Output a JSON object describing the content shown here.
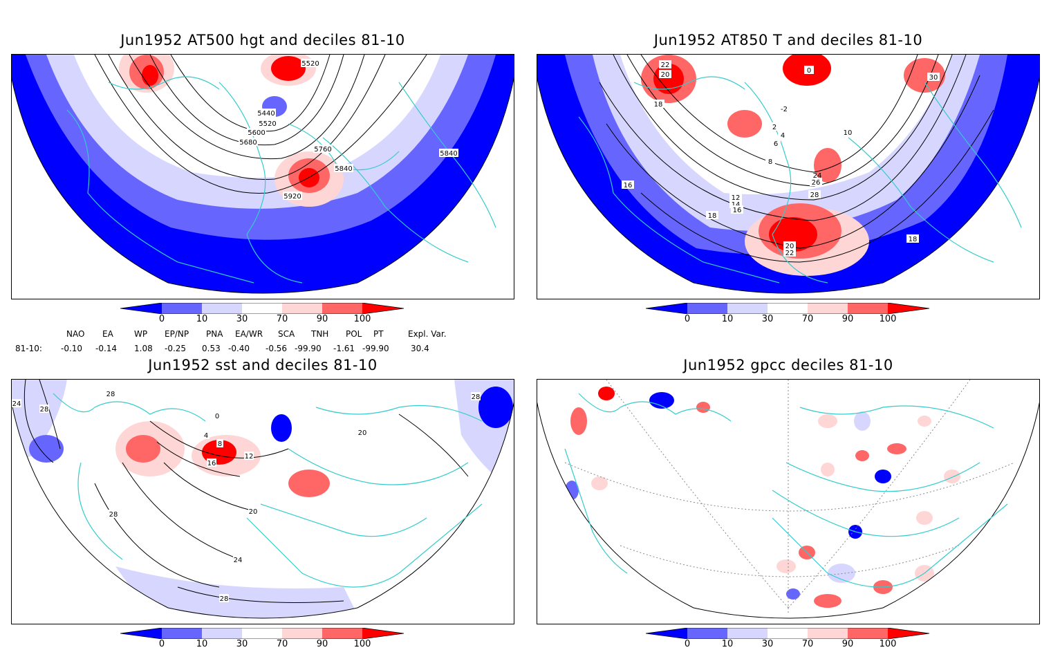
{
  "panels": [
    {
      "id": "p1",
      "title": "Jun1952 AT500 hgt and deciles 81-10",
      "contour_labels": [
        "5520",
        "5440",
        "5520",
        "5600",
        "5680",
        "5760",
        "5840",
        "5920",
        "5840"
      ]
    },
    {
      "id": "p2",
      "title": "Jun1952 AT850 T and deciles 81-10",
      "contour_labels": [
        "22",
        "20",
        "18",
        "0",
        "-2",
        "2",
        "4",
        "6",
        "8",
        "10",
        "12",
        "14",
        "16",
        "18",
        "20",
        "22",
        "24",
        "26",
        "28",
        "30",
        "16",
        "18"
      ]
    },
    {
      "id": "p3",
      "title": "Jun1952 sst and deciles 81-10",
      "contour_labels": [
        "24",
        "28",
        "28",
        "0",
        "4",
        "8",
        "12",
        "16",
        "20",
        "24",
        "28",
        "20",
        "28",
        "28"
      ]
    },
    {
      "id": "p4",
      "title": "Jun1952 gpcc deciles 81-10",
      "contour_labels": []
    }
  ],
  "colorbar": {
    "labels": [
      "0",
      "10",
      "30",
      "70",
      "90",
      "100"
    ],
    "colors": [
      "#0000ff",
      "#6666ff",
      "#d6d6ff",
      "#ffffff",
      "#ffd6d6",
      "#ff6666",
      "#ff0000"
    ]
  },
  "indices": {
    "row_label": "81-10:",
    "names": [
      "NAO",
      "EA",
      "WP",
      "EP/NP",
      "PNA",
      "EA/WR",
      "SCA",
      "TNH",
      "POL",
      "PT",
      "Expl. Var."
    ],
    "values": [
      "-0.10",
      "-0.14",
      "1.08",
      "-0.25",
      "0.53",
      "-0.40",
      "-0.56",
      "-99.90",
      "-1.61",
      "-99.90",
      "30.4"
    ]
  },
  "map_colors": {
    "coast": "#33cccc",
    "contour": "#000000",
    "grid": "#888888"
  }
}
